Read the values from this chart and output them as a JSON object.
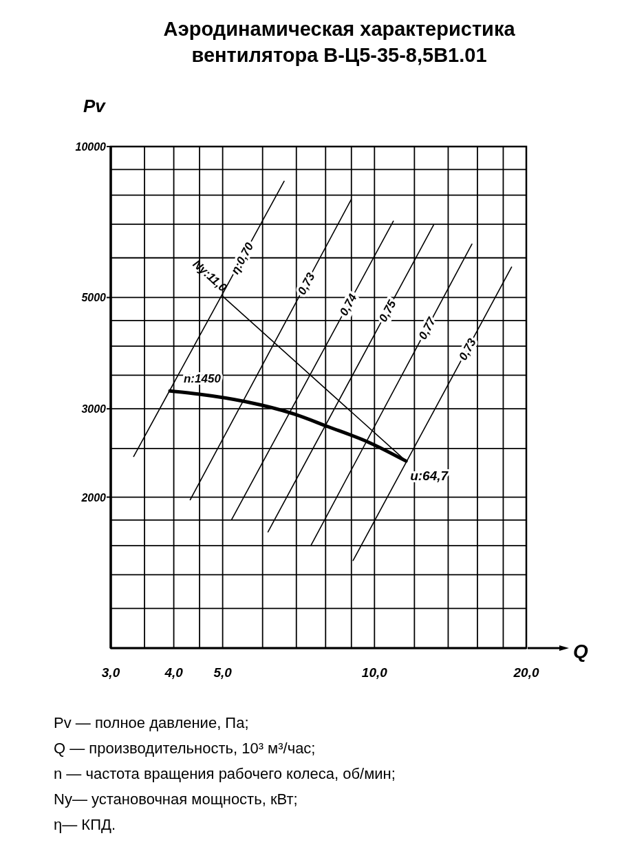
{
  "chart_data": {
    "type": "line",
    "title": "Аэродинамическая характеристика вентилятора В-Ц5-35-8,5В1.01",
    "xlabel": "Q",
    "ylabel": "Pv",
    "log": "xy",
    "grid": true,
    "xlim": [
      3,
      20
    ],
    "ylim": [
      1000,
      10000
    ],
    "xticks": [
      {
        "value": 3,
        "label": "3,0"
      },
      {
        "value": 3.5,
        "label": null
      },
      {
        "value": 4,
        "label": "4,0"
      },
      {
        "value": 4.5,
        "label": null
      },
      {
        "value": 5,
        "label": "5,0"
      },
      {
        "value": 6,
        "label": null
      },
      {
        "value": 7,
        "label": null
      },
      {
        "value": 8,
        "label": null
      },
      {
        "value": 9,
        "label": null
      },
      {
        "value": 10,
        "label": "10,0"
      },
      {
        "value": 12,
        "label": null
      },
      {
        "value": 14,
        "label": null
      },
      {
        "value": 16,
        "label": null
      },
      {
        "value": 18,
        "label": null
      },
      {
        "value": 20,
        "label": "20,0"
      }
    ],
    "yticks": [
      {
        "value": 1000,
        "label": null
      },
      {
        "value": 1200,
        "label": null
      },
      {
        "value": 1400,
        "label": null
      },
      {
        "value": 1600,
        "label": null
      },
      {
        "value": 1800,
        "label": null
      },
      2000,
      {
        "value": 2500,
        "label": null
      },
      3000,
      {
        "value": 3500,
        "label": null
      },
      {
        "value": 4000,
        "label": null
      },
      {
        "value": 4500,
        "label": null
      },
      5000,
      {
        "value": 6000,
        "label": null
      },
      {
        "value": 7000,
        "label": null
      },
      {
        "value": 8000,
        "label": null
      },
      {
        "value": 9000,
        "label": null
      },
      10000
    ],
    "series": [
      {
        "name": "η:0,70",
        "color": "#000000",
        "x": [
          3.33,
          6.62
        ],
        "values": [
          2410,
          8530
        ]
      },
      {
        "name": "0,73",
        "color": "#000000",
        "x": [
          4.31,
          8.99
        ],
        "values": [
          1975,
          7840
        ]
      },
      {
        "name": "0,74",
        "color": "#000000",
        "x": [
          5.21,
          10.9
        ],
        "values": [
          1805,
          7100
        ]
      },
      {
        "name": "0,75",
        "color": "#000000",
        "x": [
          6.15,
          13.1
        ],
        "values": [
          1705,
          6980
        ]
      },
      {
        "name": "0,77",
        "color": "#000000",
        "x": [
          7.49,
          15.6
        ],
        "values": [
          1605,
          6390
        ]
      },
      {
        "name": "0,73",
        "color": "#000000",
        "x": [
          9.07,
          18.7
        ],
        "values": [
          1495,
          5750
        ]
      },
      {
        "name": "Ny:11,0",
        "color": "#000000",
        "x": [
          5.0,
          11.55
        ],
        "values": [
          5030,
          2360
        ]
      },
      {
        "name": "n:1450",
        "color": "#000000",
        "x": [
          3.93,
          4.47,
          5.55,
          6.92,
          8.08,
          9.76,
          11.55
        ],
        "values": [
          3255,
          3210,
          3100,
          2930,
          2765,
          2570,
          2360
        ]
      }
    ],
    "annotations": [
      {
        "text": "u:64,7",
        "x": 11.55,
        "y": 2360
      },
      "Pv — полное давление, Па;",
      "Q — производительность, 10³ м³/час;",
      "n — частота вращения рабочего колеса, об/мин;",
      "Ny— установочная мощность, кВт;",
      "η— КПД."
    ]
  }
}
